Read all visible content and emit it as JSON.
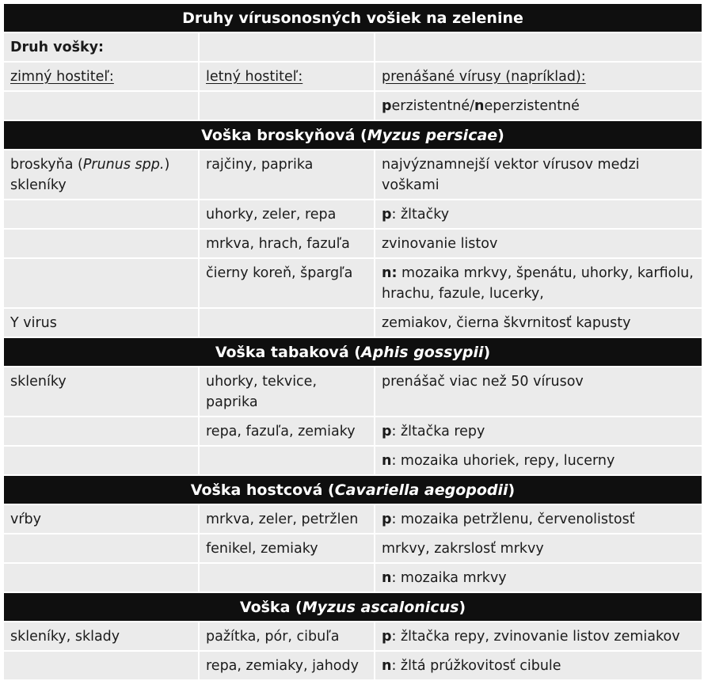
{
  "table": {
    "title": "Druhy vírusonosných vošiek na zelenine",
    "header_rows": {
      "druh_label": "Druh vošky:",
      "col1": "zimný hostiteľ:",
      "col2": "letný hostiteľ:",
      "col3": "prenášané vírusy (napríklad):",
      "legend_p": "p",
      "legend_p_rest": "erzistentné/",
      "legend_n": "n",
      "legend_n_rest": "eperzistentné"
    },
    "sections": [
      {
        "name_prefix": "Voška broskyňová (",
        "latin": "Myzus persicae",
        "name_suffix": ")",
        "rows": [
          {
            "c1a": "broskyňa (",
            "c1i": "Prunus spp.",
            "c1b": ")",
            "c1line2": "skleníky",
            "c2": "rajčiny, paprika",
            "c3": "najvýznamnejší vektor vírusov medzi voškami"
          },
          {
            "c2": "uhorky, zeler, repa",
            "c3p": "p",
            "c3": ": žltačky"
          },
          {
            "c2": "mrkva, hrach, fazuľa",
            "c3": "zvinovanie listov"
          },
          {
            "c2": "čierny koreň, špargľa",
            "c3p": "n:",
            "c3": " mozaika mrkvy, špenátu, uhorky, karfiolu, hrachu, fazule, lucerky,"
          },
          {
            "c1": "Y virus",
            "c3": "zemiakov, čierna škvrnitosť kapusty"
          }
        ]
      },
      {
        "name_prefix": "Voška tabaková (",
        "latin": "Aphis gossypii",
        "name_suffix": ")",
        "rows": [
          {
            "c1": "skleníky",
            "c2": "uhorky, tekvice, paprika",
            "c3": "prenášač viac než 50 vírusov"
          },
          {
            "c2": "repa, fazuľa, zemiaky",
            "c3p": "p",
            "c3": ": žltačka repy"
          },
          {
            "c3p": "n",
            "c3": ": mozaika uhoriek, repy, lucerny"
          }
        ]
      },
      {
        "name_prefix": "Voška hostcová (",
        "latin": "Cavariella aegopodii",
        "name_suffix": ")",
        "rows": [
          {
            "c1": "vŕby",
            "c2": "mrkva, zeler, petržlen",
            "c3p": "p",
            "c3": ": mozaika petržlenu, červenolistosť"
          },
          {
            "c2": "fenikel, zemiaky",
            "c3": "mrkvy, zakrslosť mrkvy"
          },
          {
            "c3p": "n",
            "c3": ": mozaika mrkvy"
          }
        ]
      },
      {
        "name_prefix": "Voška (",
        "latin": "Myzus ascalonicus",
        "name_suffix": ")",
        "rows": [
          {
            "c1": "skleníky, sklady",
            "c2": "pažítka, pór, cibuľa",
            "c3p": "p",
            "c3": ": žltačka repy, zvinovanie listov zemiakov"
          },
          {
            "c2": "repa, zemiaky, jahody",
            "c3p": "n",
            "c3": ": žltá prúžkovitosť cibule"
          }
        ]
      }
    ]
  }
}
